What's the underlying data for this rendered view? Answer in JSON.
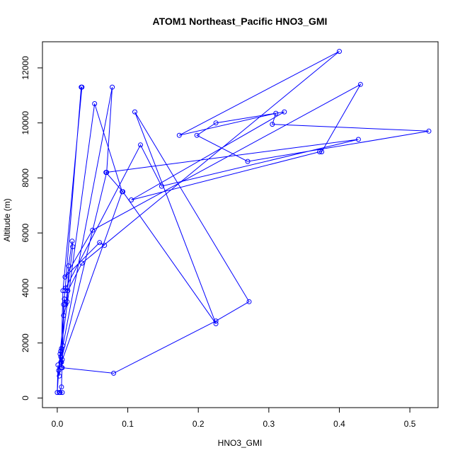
{
  "chart_data": {
    "type": "line",
    "title": "ATOM1 Northeast_Pacific HNO3_GMI",
    "xlabel": "HNO3_GMI",
    "ylabel": "Altitude (m)",
    "xlim": [
      -0.021,
      0.54
    ],
    "ylim": [
      -350,
      12950
    ],
    "x_ticks": [
      0.0,
      0.1,
      0.2,
      0.3,
      0.4,
      0.5
    ],
    "x_tick_labels": [
      "0.0",
      "0.1",
      "0.2",
      "0.3",
      "0.4",
      "0.5"
    ],
    "y_ticks": [
      0,
      2000,
      4000,
      6000,
      8000,
      10000,
      12000
    ],
    "y_tick_labels": [
      "0",
      "2000",
      "4000",
      "6000",
      "8000",
      "10000",
      "12000"
    ],
    "grid": false,
    "line_style": "lines-with-open-circle-markers",
    "color": "#0000ff",
    "series": [
      {
        "x": [
          0.007,
          0.004,
          0.003,
          0.006,
          0.009,
          0.011,
          0.034,
          0.035,
          0.008,
          0.006,
          0.005,
          0.003,
          0.001,
          0.0,
          0.002,
          0.004,
          0.009,
          0.014,
          0.016,
          0.021,
          0.022,
          0.012,
          0.01,
          0.007,
          0.006,
          0.005,
          0.008,
          0.078,
          0.07,
          0.005,
          0.005,
          0.053,
          0.092,
          0.006,
          0.007,
          0.08,
          0.225,
          0.272,
          0.11,
          0.225,
          0.093,
          0.069,
          0.427,
          0.148,
          0.118,
          0.012,
          0.015,
          0.035,
          0.4,
          0.173,
          0.31,
          0.305,
          0.527,
          0.27,
          0.198,
          0.225,
          0.322,
          0.105,
          0.372,
          0.375,
          0.43,
          0.05,
          0.011,
          0.06,
          0.067
        ],
        "y": [
          200,
          200,
          200,
          400,
          3400,
          3900,
          11300,
          11300,
          3900,
          1800,
          1700,
          800,
          1200,
          200,
          1000,
          1600,
          3000,
          3500,
          4800,
          5700,
          5500,
          3400,
          3600,
          1400,
          1100,
          1500,
          1900,
          11300,
          8200,
          1300,
          1700,
          10700,
          7500,
          1300,
          1100,
          900,
          2800,
          3500,
          10400,
          2700,
          7500,
          8200,
          9400,
          7700,
          9200,
          4000,
          3900,
          4900,
          12600,
          9550,
          10350,
          9950,
          9700,
          8600,
          9550,
          10000,
          10400,
          7200,
          8950,
          8950,
          11400,
          6100,
          4400,
          5650,
          5550
        ]
      }
    ]
  }
}
